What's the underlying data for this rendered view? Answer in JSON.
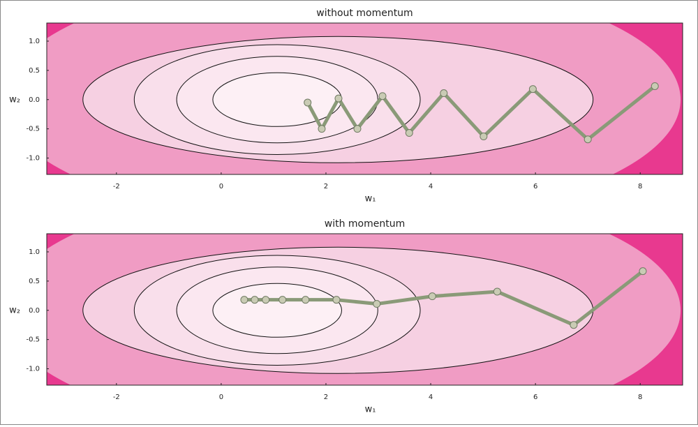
{
  "chart_data": [
    {
      "type": "line",
      "title": "without momentum",
      "xlabel": "w₁",
      "ylabel": "w₂",
      "x": [
        8.28,
        7.0,
        5.95,
        5.01,
        4.25,
        3.59,
        3.08,
        2.6,
        2.24,
        1.92,
        1.65
      ],
      "values": [
        0.23,
        -0.68,
        0.18,
        -0.63,
        0.11,
        -0.57,
        0.06,
        -0.5,
        0.02,
        -0.5,
        -0.05
      ],
      "color": "#8a9a78",
      "marker_color": "#c9cbb4",
      "xlim": [
        -3.33,
        8.81
      ],
      "ylim": [
        -1.28,
        1.31
      ],
      "xticks": [
        -2,
        0,
        2,
        4,
        6,
        8
      ],
      "yticks": [
        {
          "value": -1,
          "label": "-1.0"
        },
        {
          "value": -0.5,
          "label": "-0.5"
        },
        {
          "value": 0,
          "label": "0.0"
        },
        {
          "value": 0.5,
          "label": "0.5"
        },
        {
          "value": 1,
          "label": "1.0"
        }
      ]
    },
    {
      "type": "line",
      "title": "with momentum",
      "xlabel": "w₁",
      "ylabel": "w₂",
      "x": [
        8.05,
        6.73,
        5.27,
        4.03,
        2.97,
        2.2,
        1.61,
        1.17,
        0.85,
        0.64,
        0.44
      ],
      "values": [
        0.67,
        -0.25,
        0.32,
        0.24,
        0.11,
        0.18,
        0.18,
        0.18,
        0.18,
        0.18,
        0.18
      ],
      "color": "#8a9a78",
      "marker_color": "#c9cbb4",
      "xlim": [
        -3.33,
        8.81
      ],
      "ylim": [
        -1.28,
        1.31
      ],
      "xticks": [
        -2,
        0,
        2,
        4,
        6,
        8
      ],
      "yticks": [
        {
          "value": -1,
          "label": "-1.0"
        },
        {
          "value": -0.5,
          "label": "-0.5"
        },
        {
          "value": 0,
          "label": "0.0"
        },
        {
          "value": 0.5,
          "label": "0.5"
        },
        {
          "value": 1,
          "label": "1.0"
        }
      ]
    }
  ]
}
